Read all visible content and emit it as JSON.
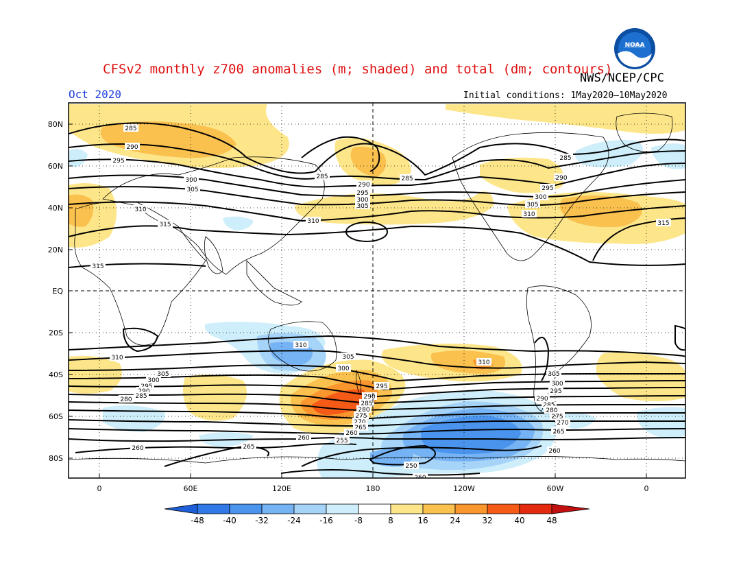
{
  "header": {
    "title": "CFSv2 monthly z700 anomalies (m; shaded) and total (dm; contours)",
    "agency": "NWS/NCEP/CPC",
    "month": "Oct 2020",
    "initial_conditions": "Initial conditions: 1May2020—10May2020",
    "logo_text": "NOAA"
  },
  "map": {
    "lat_labels": [
      "80N",
      "60N",
      "40N",
      "20N",
      "EQ",
      "20S",
      "40S",
      "60S",
      "80S"
    ],
    "lon_labels": [
      "0",
      "60E",
      "120E",
      "180",
      "120W",
      "60W",
      "0"
    ],
    "contour_values": [
      "285",
      "290",
      "295",
      "300",
      "305",
      "310",
      "315",
      "310",
      "305",
      "300",
      "295",
      "290",
      "285",
      "280",
      "275",
      "270",
      "265",
      "260",
      "255",
      "250"
    ]
  },
  "colorbar": {
    "ticks": [
      "-48",
      "-40",
      "-32",
      "-24",
      "-16",
      "-8",
      "8",
      "16",
      "24",
      "32",
      "40",
      "48"
    ],
    "colors": [
      "#1e5fd8",
      "#2f78e6",
      "#4b94ee",
      "#75b3f4",
      "#a6d3f8",
      "#cdeefa",
      "#ffffff",
      "#fde68a",
      "#fbc14f",
      "#f9962e",
      "#f55a17",
      "#e42a0e",
      "#c21010"
    ]
  },
  "contour_labels": [
    {
      "text": "285"
    },
    {
      "text": "290"
    },
    {
      "text": "295"
    },
    {
      "text": "300"
    },
    {
      "text": "305"
    },
    {
      "text": "310"
    },
    {
      "text": "315"
    },
    {
      "text": "315"
    },
    {
      "text": "285"
    },
    {
      "text": "290"
    },
    {
      "text": "295"
    },
    {
      "text": "300"
    },
    {
      "text": "305"
    },
    {
      "text": "310"
    },
    {
      "text": "285"
    },
    {
      "text": "285"
    },
    {
      "text": "290"
    },
    {
      "text": "295"
    },
    {
      "text": "300"
    },
    {
      "text": "305"
    },
    {
      "text": "310"
    },
    {
      "text": "315"
    },
    {
      "text": "310"
    },
    {
      "text": "305"
    },
    {
      "text": "300"
    },
    {
      "text": "295"
    },
    {
      "text": "290"
    },
    {
      "text": "285"
    },
    {
      "text": "280"
    },
    {
      "text": "310"
    },
    {
      "text": "305"
    },
    {
      "text": "300"
    },
    {
      "text": "310"
    },
    {
      "text": "305"
    },
    {
      "text": "300"
    },
    {
      "text": "295"
    },
    {
      "text": "290"
    },
    {
      "text": "285"
    },
    {
      "text": "280"
    },
    {
      "text": "275"
    },
    {
      "text": "270"
    },
    {
      "text": "265"
    },
    {
      "text": "260"
    },
    {
      "text": "295"
    },
    {
      "text": "290"
    },
    {
      "text": "285"
    },
    {
      "text": "280"
    },
    {
      "text": "275"
    },
    {
      "text": "270"
    },
    {
      "text": "265"
    },
    {
      "text": "260"
    },
    {
      "text": "255"
    },
    {
      "text": "260"
    },
    {
      "text": "265"
    },
    {
      "text": "260"
    },
    {
      "text": "250"
    },
    {
      "text": "260"
    }
  ]
}
